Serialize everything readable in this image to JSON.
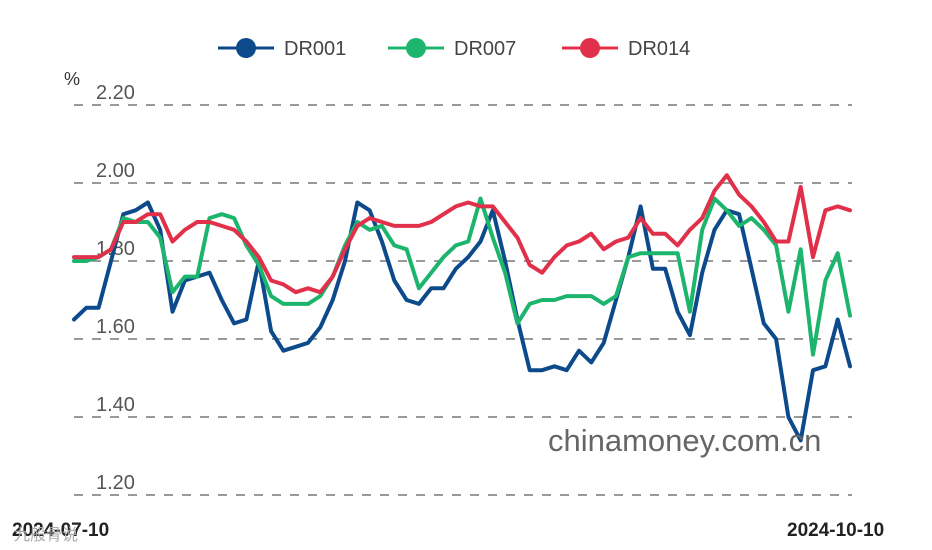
{
  "chart_data": {
    "type": "line",
    "y_unit": "%",
    "ylim": [
      1.2,
      2.2
    ],
    "y_ticks": [
      "2.20",
      "2.00",
      "1.80",
      "1.60",
      "1.40",
      "1.20"
    ],
    "x_start_label": "2024-07-10",
    "x_end_label": "2024-10-10",
    "grid": "horizontal dashed",
    "legend_position": "top",
    "watermark": "chinamoney.com.cn",
    "corner_mark": "九般骨说",
    "series": [
      {
        "name": "DR001",
        "color": "#0d4a8c",
        "values": [
          1.65,
          1.68,
          1.68,
          1.8,
          1.92,
          1.93,
          1.95,
          1.88,
          1.67,
          1.75,
          1.76,
          1.77,
          1.7,
          1.64,
          1.65,
          1.8,
          1.62,
          1.57,
          1.58,
          1.59,
          1.63,
          1.7,
          1.8,
          1.95,
          1.93,
          1.85,
          1.75,
          1.7,
          1.69,
          1.73,
          1.73,
          1.78,
          1.81,
          1.85,
          1.93,
          1.8,
          1.65,
          1.52,
          1.52,
          1.53,
          1.52,
          1.57,
          1.54,
          1.59,
          1.7,
          1.81,
          1.94,
          1.78,
          1.78,
          1.67,
          1.61,
          1.77,
          1.88,
          1.93,
          1.92,
          1.78,
          1.64,
          1.6,
          1.4,
          1.34,
          1.52,
          1.53,
          1.65,
          1.53
        ]
      },
      {
        "name": "DR007",
        "color": "#1db56e",
        "values": [
          1.8,
          1.8,
          1.81,
          1.83,
          1.91,
          1.9,
          1.9,
          1.86,
          1.72,
          1.76,
          1.76,
          1.91,
          1.92,
          1.91,
          1.84,
          1.79,
          1.71,
          1.69,
          1.69,
          1.69,
          1.71,
          1.76,
          1.84,
          1.9,
          1.88,
          1.89,
          1.84,
          1.83,
          1.73,
          1.77,
          1.81,
          1.84,
          1.85,
          1.96,
          1.86,
          1.77,
          1.64,
          1.69,
          1.7,
          1.7,
          1.71,
          1.71,
          1.71,
          1.69,
          1.71,
          1.81,
          1.82,
          1.82,
          1.82,
          1.82,
          1.67,
          1.88,
          1.96,
          1.93,
          1.89,
          1.91,
          1.88,
          1.84,
          1.67,
          1.83,
          1.56,
          1.75,
          1.82,
          1.66
        ]
      },
      {
        "name": "DR014",
        "color": "#e0304a",
        "values": [
          1.81,
          1.81,
          1.81,
          1.83,
          1.9,
          1.9,
          1.92,
          1.92,
          1.85,
          1.88,
          1.9,
          1.9,
          1.89,
          1.88,
          1.85,
          1.81,
          1.75,
          1.74,
          1.72,
          1.73,
          1.72,
          1.76,
          1.83,
          1.89,
          1.91,
          1.9,
          1.89,
          1.89,
          1.89,
          1.9,
          1.92,
          1.94,
          1.95,
          1.94,
          1.94,
          1.9,
          1.86,
          1.79,
          1.77,
          1.81,
          1.84,
          1.85,
          1.87,
          1.83,
          1.85,
          1.86,
          1.91,
          1.87,
          1.87,
          1.84,
          1.88,
          1.91,
          1.98,
          2.02,
          1.97,
          1.94,
          1.9,
          1.85,
          1.85,
          1.99,
          1.81,
          1.93,
          1.94,
          1.93
        ]
      }
    ]
  }
}
